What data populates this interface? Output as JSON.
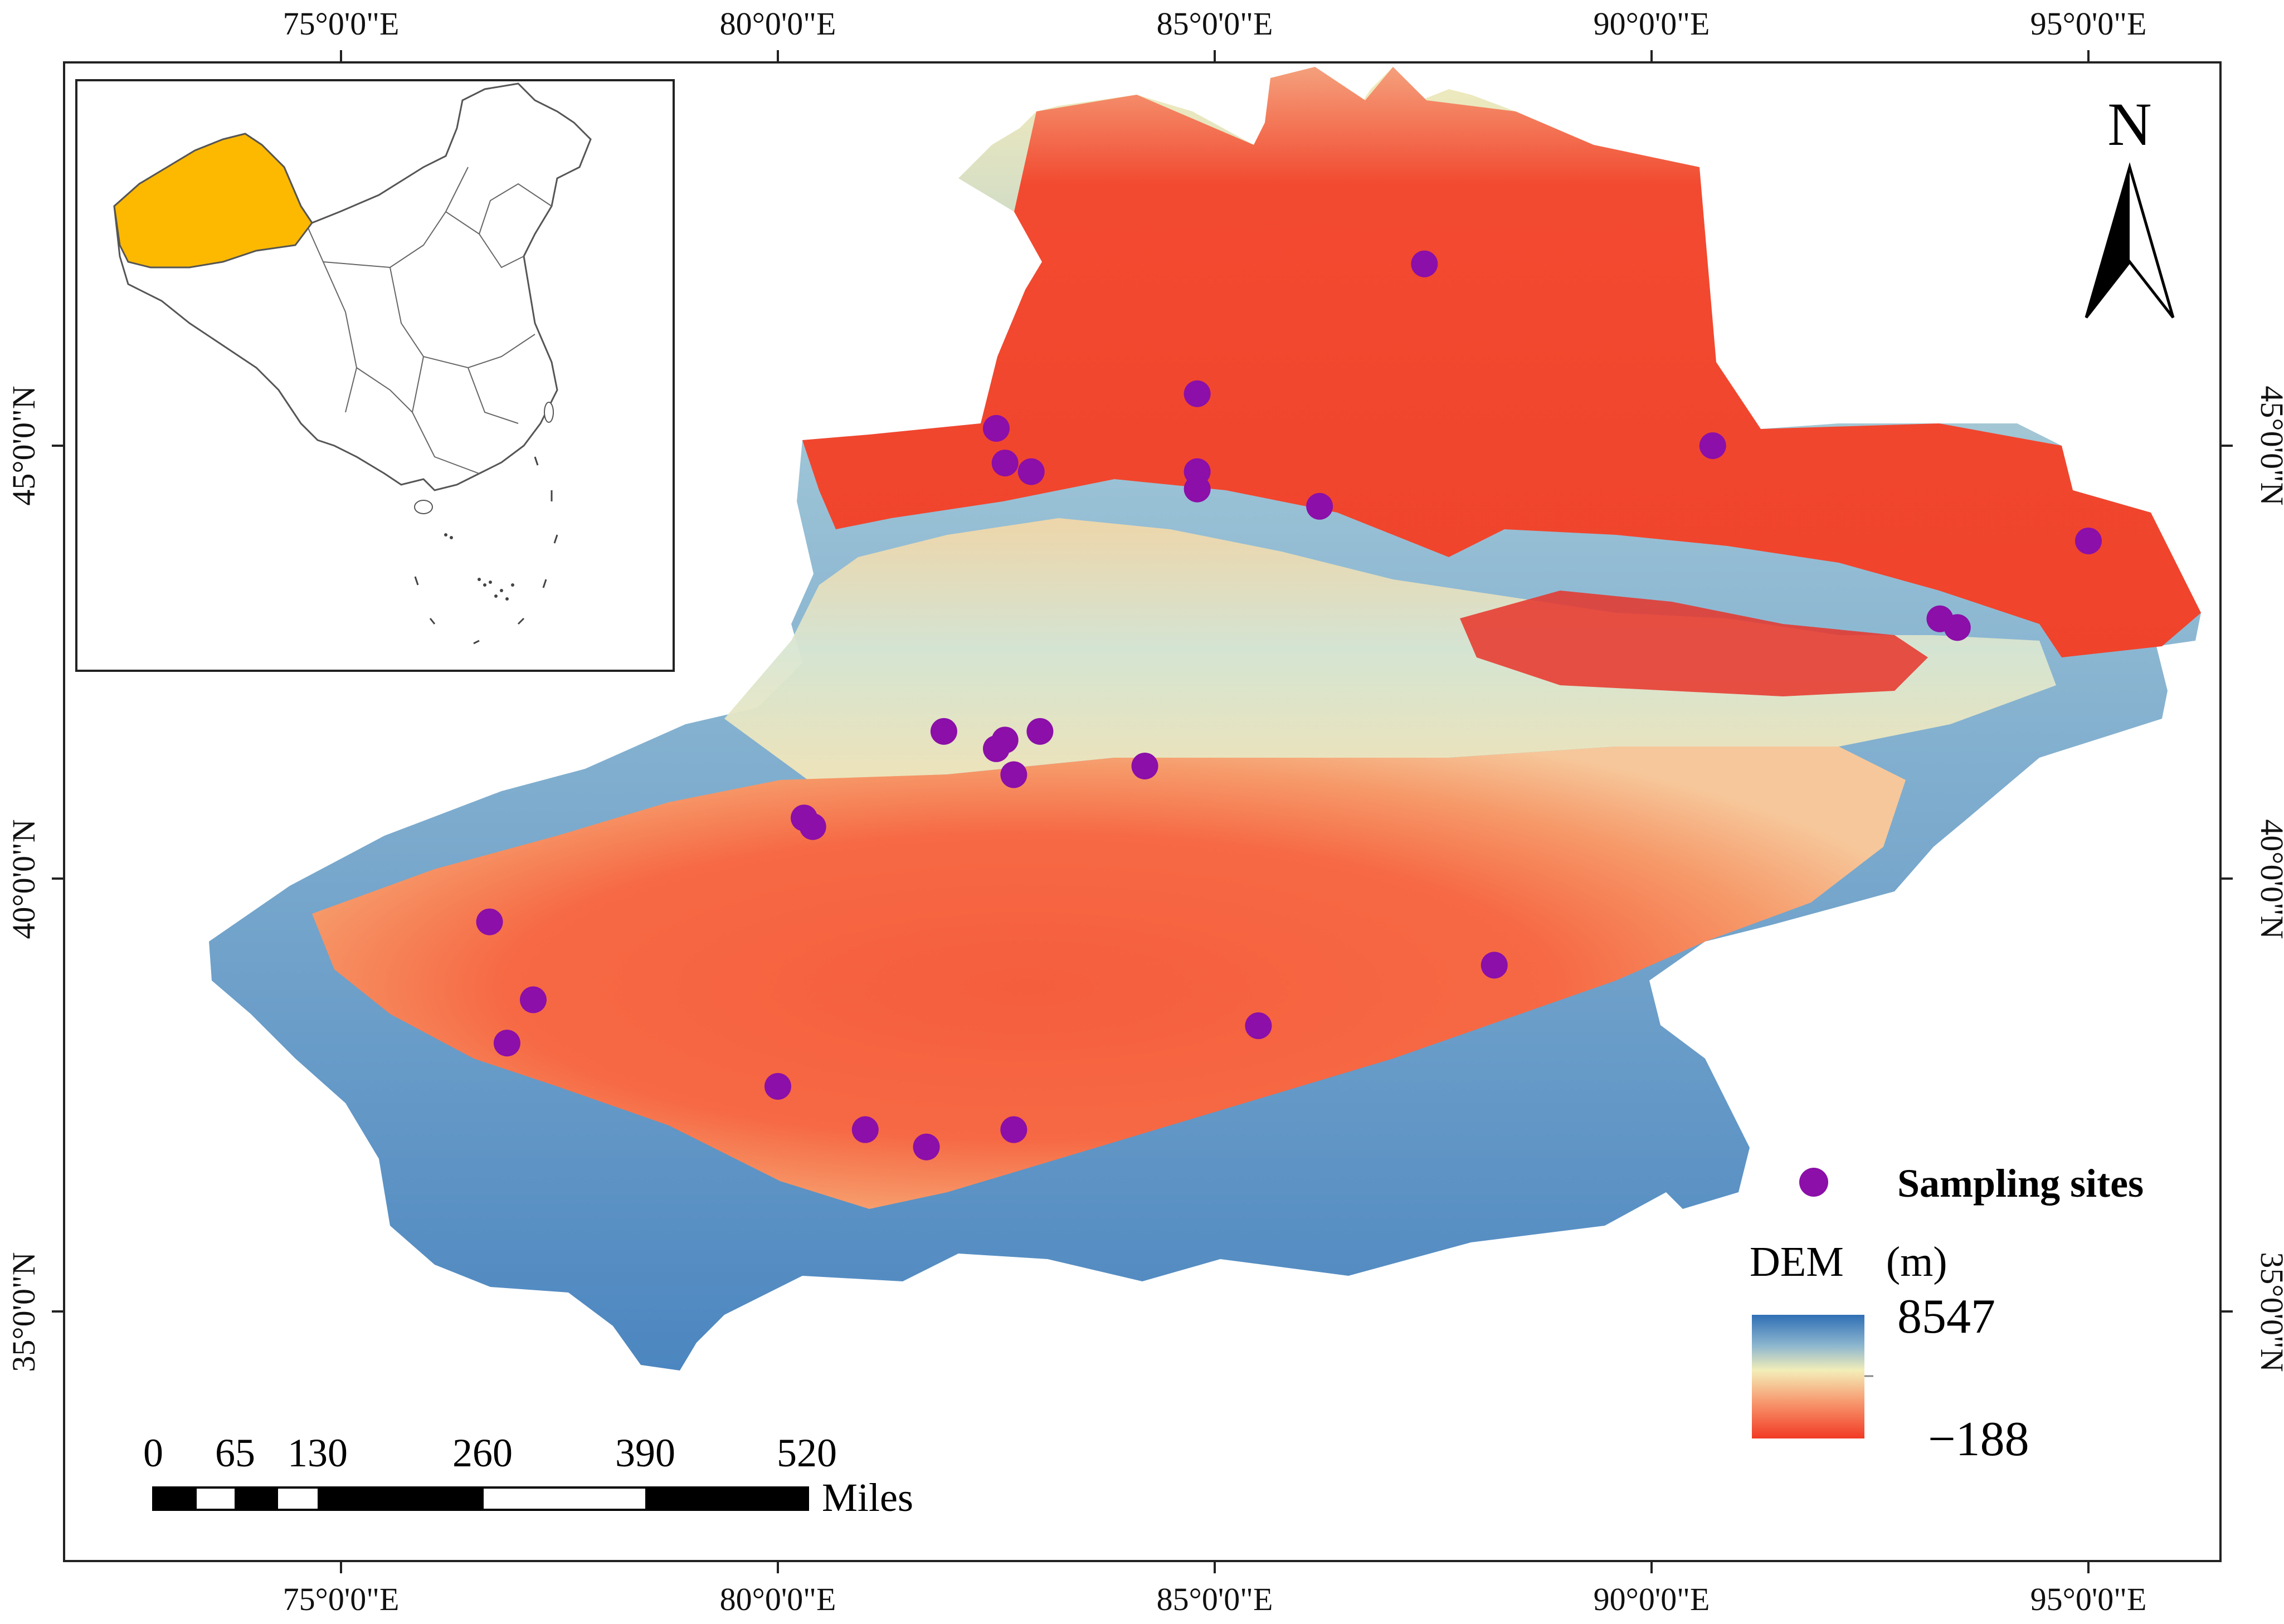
{
  "map": {
    "lon_ticks": [
      "75°0'0\"E",
      "80°0'0\"E",
      "85°0'0\"E",
      "90°0'0\"E",
      "95°0'0\"E"
    ],
    "lat_ticks": [
      "45°0'0\"N",
      "40°0'0\"N",
      "35°0'0\"N"
    ],
    "legend": {
      "sites_label": "Sampling sites",
      "dem_title": "DEM　(m)",
      "dem_max": "8547",
      "dem_min": "−188",
      "colors": {
        "high": "#2f6fb5",
        "mid": "#f3eeb8",
        "low": "#f13a24"
      }
    },
    "north_arrow": {
      "label": "N"
    },
    "scale_bar": {
      "tick_labels": [
        "0",
        "65",
        "130",
        "260",
        "390",
        "520"
      ],
      "unit": "Miles"
    },
    "inset": {
      "highlight_color": "#fdb900"
    },
    "site_color": "#8b0fa8",
    "sampling_sites": [
      {
        "lon": 87.4,
        "lat": 47.1
      },
      {
        "lon": 84.8,
        "lat": 45.6
      },
      {
        "lon": 82.5,
        "lat": 45.2
      },
      {
        "lon": 82.6,
        "lat": 44.8
      },
      {
        "lon": 82.9,
        "lat": 44.7
      },
      {
        "lon": 84.8,
        "lat": 44.7
      },
      {
        "lon": 84.8,
        "lat": 44.5
      },
      {
        "lon": 86.2,
        "lat": 44.3
      },
      {
        "lon": 90.7,
        "lat": 45.0
      },
      {
        "lon": 95.0,
        "lat": 43.9
      },
      {
        "lon": 93.3,
        "lat": 43.0
      },
      {
        "lon": 93.5,
        "lat": 42.9
      },
      {
        "lon": 81.9,
        "lat": 41.7
      },
      {
        "lon": 82.6,
        "lat": 41.6
      },
      {
        "lon": 83.0,
        "lat": 41.7
      },
      {
        "lon": 82.5,
        "lat": 41.5
      },
      {
        "lon": 82.7,
        "lat": 41.2
      },
      {
        "lon": 84.2,
        "lat": 41.3
      },
      {
        "lon": 80.3,
        "lat": 40.7
      },
      {
        "lon": 80.4,
        "lat": 40.6
      },
      {
        "lon": 76.7,
        "lat": 39.5
      },
      {
        "lon": 77.2,
        "lat": 38.6
      },
      {
        "lon": 76.9,
        "lat": 38.1
      },
      {
        "lon": 80.0,
        "lat": 37.6
      },
      {
        "lon": 81.0,
        "lat": 37.1
      },
      {
        "lon": 81.7,
        "lat": 36.9
      },
      {
        "lon": 82.7,
        "lat": 37.1
      },
      {
        "lon": 85.5,
        "lat": 38.3
      },
      {
        "lon": 88.2,
        "lat": 39.0
      }
    ]
  }
}
